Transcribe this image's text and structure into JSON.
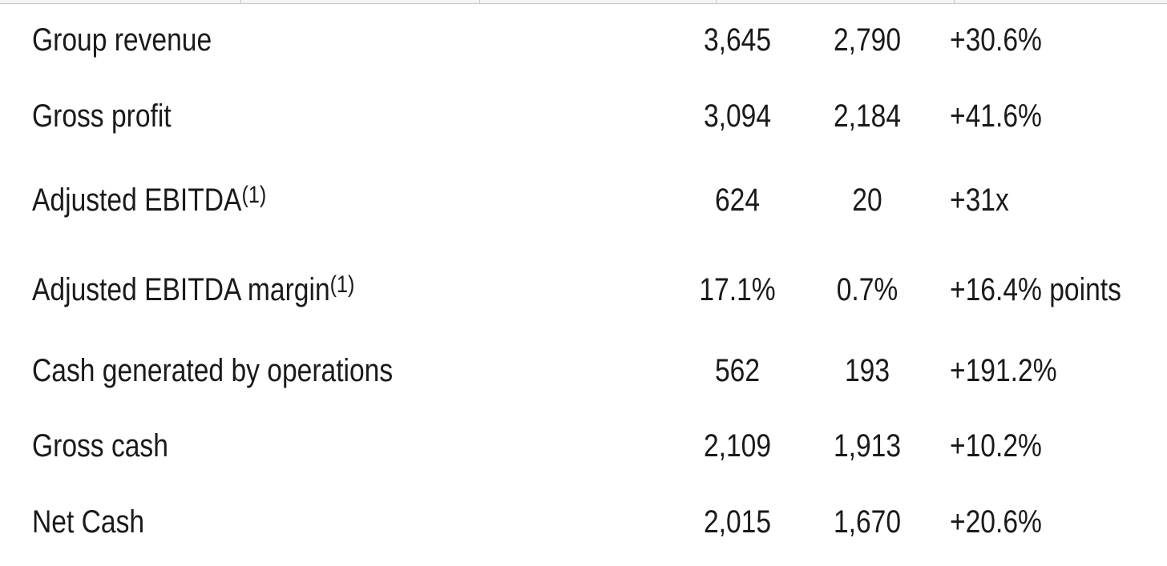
{
  "table": {
    "rows": [
      {
        "label": "Group revenue",
        "values": [
          "3,645",
          "2,790",
          "+30.6%"
        ]
      },
      {
        "label": "Gross profit",
        "values": [
          "3,094",
          "2,184",
          "+41.6%"
        ]
      },
      {
        "label": "Adjusted EBITDA",
        "note": "(1)",
        "values": [
          "624",
          "20",
          "+31x"
        ]
      },
      {
        "label": "Adjusted EBITDA margin",
        "note": "(1)",
        "values": [
          "17.1%",
          "0.7%",
          "+16.4% points"
        ]
      },
      {
        "label": "Cash generated by operations",
        "values": [
          "562",
          "193",
          "+191.2%"
        ]
      },
      {
        "label": "Gross cash",
        "values": [
          "2,109",
          "1,913",
          "+10.2%"
        ]
      },
      {
        "label": "Net Cash",
        "values": [
          "2,015",
          "1,670",
          "+20.6%"
        ]
      }
    ]
  }
}
